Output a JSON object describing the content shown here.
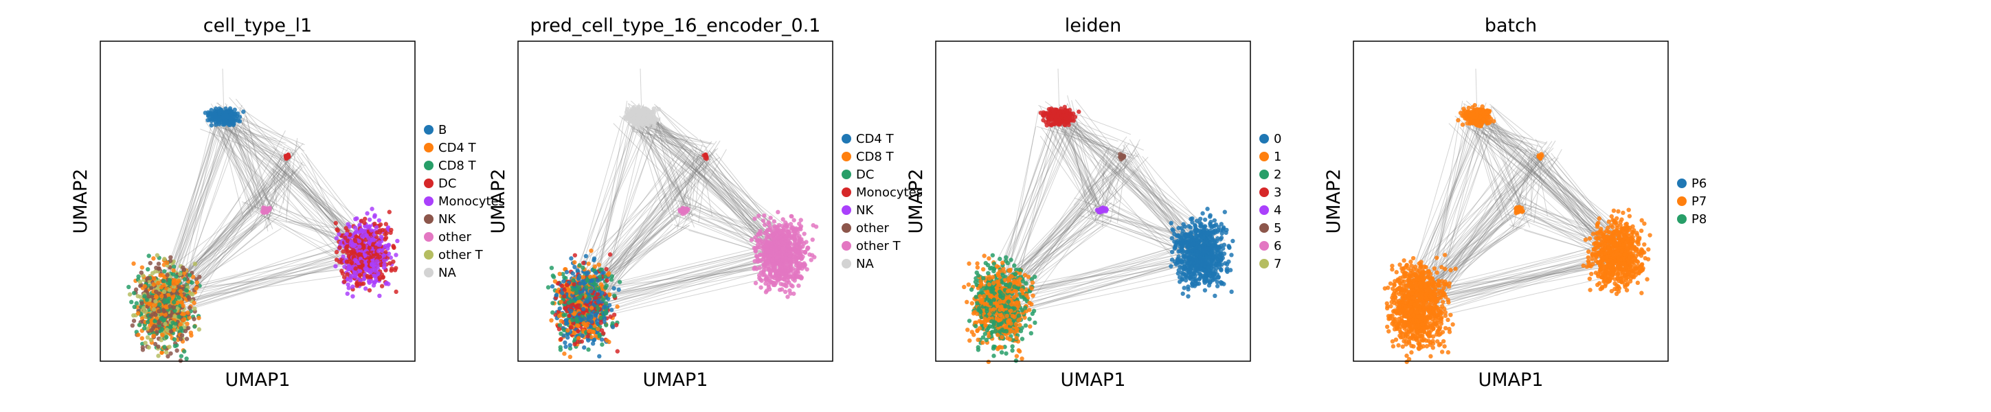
{
  "figure": {
    "background": "#ffffff",
    "edge_color": "#808080",
    "point_colors": {
      "blue": "#1f77b4",
      "orange": "#ff7f0e",
      "green": "#279e68",
      "red": "#d62728",
      "purple": "#aa40fc",
      "brown": "#8c564b",
      "pink": "#e377c2",
      "olive": "#b5bd61",
      "grey": "#d3d3d3"
    }
  },
  "chart_data": [
    {
      "type": "scatter",
      "title": "cell_type_l1",
      "xlabel": "UMAP1",
      "ylabel": "UMAP2",
      "grid": false,
      "legend_position": "right",
      "legend": [
        {
          "label": "B",
          "color": "#1f77b4"
        },
        {
          "label": "CD4 T",
          "color": "#ff7f0e"
        },
        {
          "label": "CD8 T",
          "color": "#279e68"
        },
        {
          "label": "DC",
          "color": "#d62728"
        },
        {
          "label": "Monocytes",
          "color": "#aa40fc"
        },
        {
          "label": "NK",
          "color": "#8c564b"
        },
        {
          "label": "other",
          "color": "#e377c2"
        },
        {
          "label": "other T",
          "color": "#b5bd61"
        },
        {
          "label": "NA",
          "color": "#d3d3d3"
        }
      ],
      "clusters": {
        "top": [
          "B"
        ],
        "lower_left": [
          "CD4 T",
          "CD8 T",
          "NK",
          "other T"
        ],
        "right": [
          "Monocytes",
          "DC"
        ],
        "middle": [
          "other"
        ],
        "small_upper": [
          "DC"
        ]
      }
    },
    {
      "type": "scatter",
      "title": "pred_cell_type_16_encoder_0.1",
      "xlabel": "UMAP1",
      "ylabel": "UMAP2",
      "grid": false,
      "legend_position": "right",
      "legend": [
        {
          "label": "CD4 T",
          "color": "#1f77b4"
        },
        {
          "label": "CD8 T",
          "color": "#ff7f0e"
        },
        {
          "label": "DC",
          "color": "#279e68"
        },
        {
          "label": "Monocytes",
          "color": "#d62728"
        },
        {
          "label": "NK",
          "color": "#aa40fc"
        },
        {
          "label": "other",
          "color": "#8c564b"
        },
        {
          "label": "other T",
          "color": "#e377c2"
        },
        {
          "label": "NA",
          "color": "#d3d3d3"
        }
      ],
      "clusters": {
        "top": [
          "NA"
        ],
        "lower_left": [
          "CD4 T",
          "CD8 T",
          "DC",
          "Monocytes"
        ],
        "right": [
          "other T"
        ],
        "middle": [
          "other T"
        ],
        "small_upper": [
          "Monocytes"
        ]
      }
    },
    {
      "type": "scatter",
      "title": "leiden",
      "xlabel": "UMAP1",
      "ylabel": "UMAP2",
      "grid": false,
      "legend_position": "right",
      "legend": [
        {
          "label": "0",
          "color": "#1f77b4"
        },
        {
          "label": "1",
          "color": "#ff7f0e"
        },
        {
          "label": "2",
          "color": "#279e68"
        },
        {
          "label": "3",
          "color": "#d62728"
        },
        {
          "label": "4",
          "color": "#aa40fc"
        },
        {
          "label": "5",
          "color": "#8c564b"
        },
        {
          "label": "6",
          "color": "#e377c2"
        },
        {
          "label": "7",
          "color": "#b5bd61"
        }
      ],
      "clusters": {
        "top": [
          "3"
        ],
        "lower_left": [
          "1",
          "2"
        ],
        "right": [
          "0"
        ],
        "middle": [
          "4"
        ],
        "small_upper": [
          "5"
        ]
      }
    },
    {
      "type": "scatter",
      "title": "batch",
      "xlabel": "UMAP1",
      "ylabel": "UMAP2",
      "grid": false,
      "legend_position": "right",
      "legend": [
        {
          "label": "P6",
          "color": "#1f77b4"
        },
        {
          "label": "P7",
          "color": "#ff7f0e"
        },
        {
          "label": "P8",
          "color": "#279e68"
        }
      ],
      "clusters": {
        "top": [
          "P7"
        ],
        "lower_left": [
          "P7"
        ],
        "right": [
          "P7"
        ],
        "middle": [
          "P7"
        ],
        "small_upper": [
          "P7"
        ]
      }
    }
  ]
}
